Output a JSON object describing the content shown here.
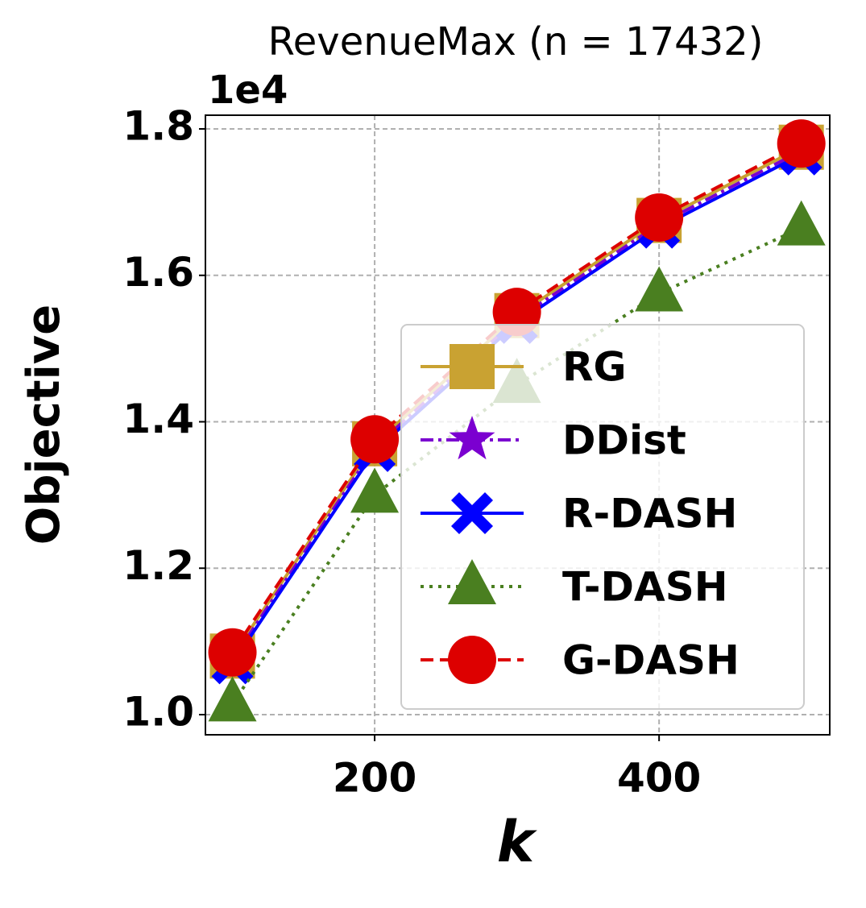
{
  "chart_data": {
    "type": "line",
    "title": "RevenueMax (n = 17432)",
    "y_offset_label": "1e4",
    "xlabel": "k",
    "ylabel": "Objective",
    "x": [
      100,
      200,
      300,
      400,
      500
    ],
    "xlim": [
      81,
      520
    ],
    "xticks": [
      200,
      400
    ],
    "ylim": [
      0.9725,
      1.8187
    ],
    "yticks": [
      {
        "value": 1,
        "label": "1.0"
      },
      1.2,
      1.4,
      1.6,
      1.8
    ],
    "grid": true,
    "legend": "lower right",
    "series": [
      {
        "name": "RG",
        "color": "#c9a232",
        "marker": "square",
        "linestyle": "solid",
        "values": [
          1.08,
          1.37,
          1.545,
          1.675,
          1.775
        ]
      },
      {
        "name": "DDist",
        "color": "#7b00d0",
        "marker": "star",
        "linestyle": "dashdot",
        "values": [
          1.075,
          1.365,
          1.54,
          1.67,
          1.77
        ]
      },
      {
        "name": "R-DASH",
        "color": "#0000ff",
        "marker": "x",
        "linestyle": "solid",
        "values": [
          1.07,
          1.36,
          1.535,
          1.665,
          1.765
        ]
      },
      {
        "name": "T-DASH",
        "color": "#4a7f20",
        "marker": "triangle",
        "linestyle": "dotted",
        "values": [
          1.015,
          1.3,
          1.45,
          1.575,
          1.665
        ]
      },
      {
        "name": "G-DASH",
        "color": "#dd0000",
        "marker": "circle",
        "linestyle": "dashed",
        "values": [
          1.085,
          1.376,
          1.55,
          1.679,
          1.78
        ]
      }
    ]
  }
}
